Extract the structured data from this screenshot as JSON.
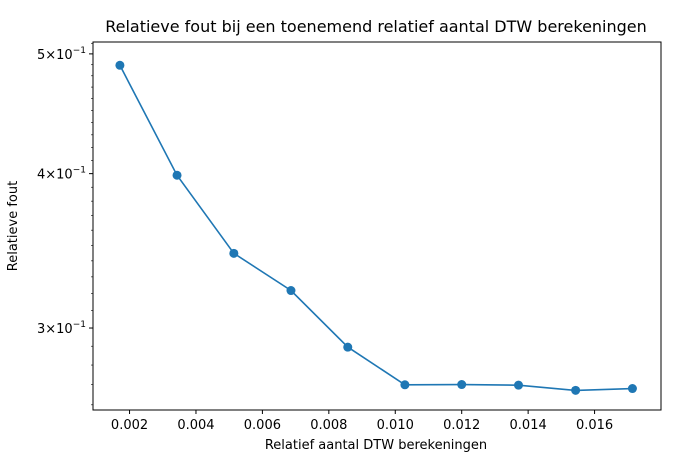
{
  "chart_data": {
    "type": "line",
    "title": "Relatieve fout bij een toenemend relatief aantal DTW berekeningen",
    "xlabel": "Relatief aantal DTW berekeningen",
    "ylabel": "Relatieve fout",
    "yscale": "log",
    "xlim": [
      0.0009,
      0.018
    ],
    "ylim": [
      0.2575,
      0.5112
    ],
    "x_ticks": [
      0.002,
      0.004,
      0.006,
      0.008,
      0.01,
      0.012,
      0.014,
      0.016
    ],
    "x_tick_labels": [
      "0.002",
      "0.004",
      "0.006",
      "0.008",
      "0.010",
      "0.012",
      "0.014",
      "0.016"
    ],
    "y_ticks": [
      0.3,
      0.4,
      0.5
    ],
    "y_tick_labels": [
      {
        "base": "3",
        "exp": "−1"
      },
      {
        "base": "4",
        "exp": "−1"
      },
      {
        "base": "5",
        "exp": "−1"
      }
    ],
    "grid": false,
    "series": [
      {
        "color": "#1f77b4",
        "marker": "circle",
        "x": [
          0.00171,
          0.00343,
          0.00514,
          0.00686,
          0.00857,
          0.01029,
          0.012,
          0.01371,
          0.01543,
          0.01714
        ],
        "y": [
          0.4895,
          0.3988,
          0.3448,
          0.3217,
          0.2895,
          0.2699,
          0.27,
          0.2697,
          0.2671,
          0.268
        ]
      }
    ]
  }
}
